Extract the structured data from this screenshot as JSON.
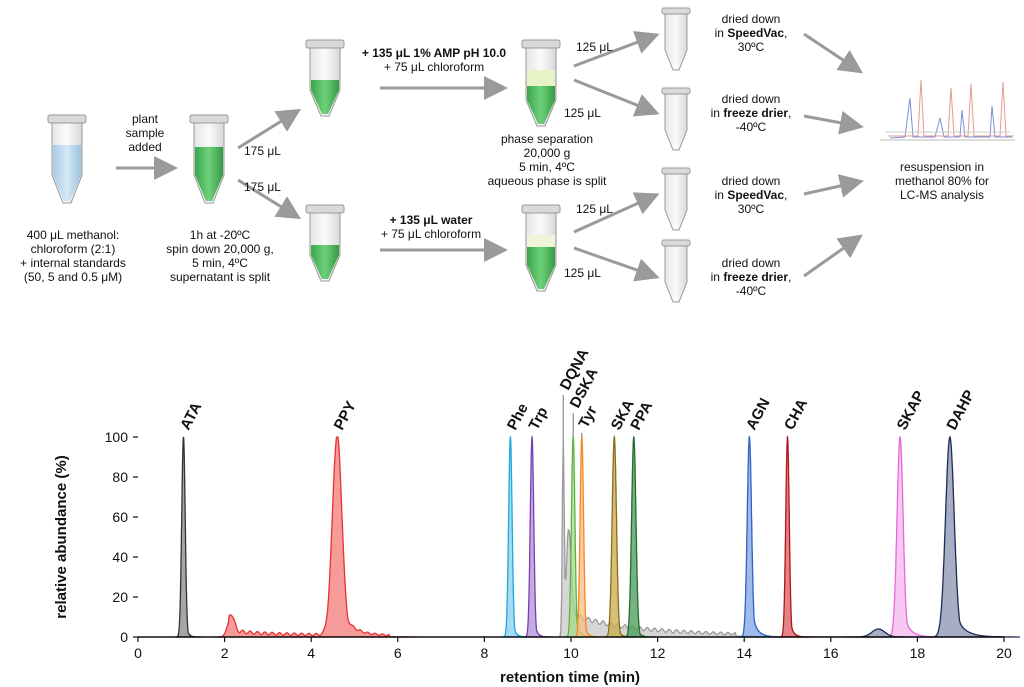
{
  "workflow": {
    "start_caption": [
      "400 μL methanol:",
      "chloroform (2:1)",
      "+ internal standards",
      "(50, 5 and 0.5 μM)"
    ],
    "sample_added": [
      "plant",
      "sample",
      "added"
    ],
    "incubation_caption": [
      "1h at -20ºC",
      "spin down 20,000 g,",
      "5 min, 4ºC",
      "supernatant is split"
    ],
    "split_volume_top": "175 μL",
    "split_volume_bottom": "175 μL",
    "amp_reagent": "+ 135 μL 1% AMP pH 10.0",
    "amp_chloroform": "+ 75 μL chloroform",
    "water_reagent": "+ 135 μL water",
    "water_chloroform": "+ 75 μL chloroform",
    "phase_caption": [
      "phase separation",
      "20,000 g",
      "5 min, 4ºC",
      "aqueous phase is split"
    ],
    "aliquot_volume": "125 μL",
    "drying": [
      {
        "line1": "dried down",
        "prefix": "in ",
        "method": "SpeedVac",
        "suffix": ",",
        "temp": "30ºC"
      },
      {
        "line1": "dried down",
        "prefix": "in ",
        "method": "freeze drier",
        "suffix": ",",
        "temp": "-40ºC"
      },
      {
        "line1": "dried down",
        "prefix": "in ",
        "method": "SpeedVac",
        "suffix": ",",
        "temp": "30ºC"
      },
      {
        "line1": "dried down",
        "prefix": "in ",
        "method": "freeze drier",
        "suffix": ",",
        "temp": "-40ºC"
      }
    ],
    "resuspension": [
      "resuspension in",
      "methanol 80% for",
      "LC-MS analysis"
    ]
  },
  "chart_data": {
    "type": "area",
    "xlabel": "retention time (min)",
    "ylabel": "relative abundance (%)",
    "xlim": [
      0,
      20
    ],
    "ylim": [
      0,
      100
    ],
    "xticks": [
      0,
      2,
      4,
      6,
      8,
      10,
      12,
      14,
      16,
      18,
      20
    ],
    "yticks": [
      0,
      20,
      40,
      60,
      80,
      100
    ],
    "grid": false,
    "series": [
      {
        "name": "ATA",
        "color": "#333333",
        "fill": "#888888",
        "peaks": [
          {
            "rt": 1.05,
            "height": 100,
            "width": 0.04,
            "tail": 0.05
          }
        ]
      },
      {
        "name": "PPY",
        "color": "#e8312f",
        "fill": "#f27b78",
        "peaks": [
          {
            "rt": 2.15,
            "height": 10,
            "width": 0.08,
            "tail": 0.5
          },
          {
            "rt": 4.6,
            "height": 100,
            "width": 0.11,
            "tail": 0.25
          }
        ],
        "baseline": [
          2.1,
          5.8,
          2
        ]
      },
      {
        "name": "Phe",
        "color": "#1fa7d8",
        "fill": "#86d0ee",
        "peaks": [
          {
            "rt": 8.6,
            "height": 100,
            "width": 0.04,
            "tail": 0.06
          }
        ]
      },
      {
        "name": "Trp",
        "color": "#7a3fb0",
        "fill": "#b38fd6",
        "peaks": [
          {
            "rt": 9.1,
            "height": 100,
            "width": 0.04,
            "tail": 0.06
          }
        ]
      },
      {
        "name": "DQNA",
        "color": "#9a9a9a",
        "fill": "#c8c8c8",
        "peaks": [
          {
            "rt": 9.82,
            "height": 100,
            "width": 0.02,
            "tail": 0.03
          },
          {
            "rt": 9.95,
            "height": 52,
            "width": 0.06,
            "tail": 1.2
          }
        ],
        "baseline": [
          9.9,
          13.8,
          3
        ]
      },
      {
        "name": "DSKA",
        "color": "#5fb23f",
        "fill": "#a3d98c",
        "peaks": [
          {
            "rt": 10.05,
            "height": 100,
            "width": 0.04,
            "tail": 0.08
          }
        ]
      },
      {
        "name": "Tyr",
        "color": "#f08a24",
        "fill": "#f7bd84",
        "peaks": [
          {
            "rt": 10.25,
            "height": 100,
            "width": 0.04,
            "tail": 0.06
          }
        ]
      },
      {
        "name": "SKA",
        "color": "#8a6d1a",
        "fill": "#c8a94a",
        "peaks": [
          {
            "rt": 11.0,
            "height": 100,
            "width": 0.05,
            "tail": 0.06
          }
        ]
      },
      {
        "name": "PPA",
        "color": "#1f6e2e",
        "fill": "#4a9a55",
        "peaks": [
          {
            "rt": 11.45,
            "height": 100,
            "width": 0.05,
            "tail": 0.06
          }
        ]
      },
      {
        "name": "AGN",
        "color": "#2f62c4",
        "fill": "#7ea4e4",
        "peaks": [
          {
            "rt": 14.12,
            "height": 100,
            "width": 0.05,
            "tail": 0.12
          }
        ]
      },
      {
        "name": "CHA",
        "color": "#b0151b",
        "fill": "#d95a5e",
        "peaks": [
          {
            "rt": 15.0,
            "height": 100,
            "width": 0.04,
            "tail": 0.07
          }
        ]
      },
      {
        "name": "SKAP",
        "color": "#e46ad8",
        "fill": "#f3b5ee",
        "peaks": [
          {
            "rt": 17.6,
            "height": 100,
            "width": 0.07,
            "tail": 0.15
          }
        ]
      },
      {
        "name": "DAHP",
        "color": "#1d2b57",
        "fill": "#8a93b0",
        "peaks": [
          {
            "rt": 17.1,
            "height": 4,
            "width": 0.15,
            "tail": 0.2
          },
          {
            "rt": 18.75,
            "height": 100,
            "width": 0.1,
            "tail": 0.22
          }
        ]
      }
    ],
    "label_rt": {
      "ATA": 1.05,
      "PPY": 4.6,
      "Phe": 8.6,
      "Trp": 9.1,
      "DQNA": 9.82,
      "DSKA": 10.05,
      "Tyr": 10.25,
      "SKA": 11.0,
      "PPA": 11.45,
      "AGN": 14.12,
      "CHA": 15.0,
      "SKAP": 17.6,
      "DAHP": 18.75
    }
  }
}
